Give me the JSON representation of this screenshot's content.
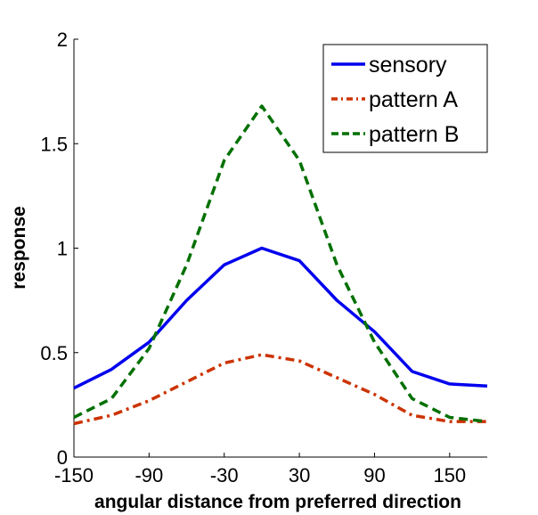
{
  "chart_data": {
    "type": "line",
    "xlabel": "angular distance from preferred direction",
    "ylabel": "response",
    "xlim": [
      -150,
      180
    ],
    "ylim": [
      0,
      2
    ],
    "xticks": [
      -150,
      -90,
      -30,
      30,
      90,
      150
    ],
    "xtick_labels": [
      "-150",
      "-90",
      "-30",
      "30",
      "90",
      "150"
    ],
    "yticks": [
      0,
      0.5,
      1,
      1.5,
      2
    ],
    "ytick_labels": [
      "0",
      "0.5",
      "1",
      "1.5",
      "2"
    ],
    "grid": false,
    "legend_position": "top-right",
    "x": [
      -150,
      -120,
      -90,
      -60,
      -30,
      0,
      30,
      60,
      90,
      120,
      150,
      180
    ],
    "series": [
      {
        "name": "sensory",
        "color": "#0000ee",
        "style": "solid",
        "values": [
          0.33,
          0.42,
          0.55,
          0.75,
          0.92,
          1.0,
          0.94,
          0.75,
          0.6,
          0.41,
          0.35,
          0.34
        ]
      },
      {
        "name": "pattern A",
        "color": "#cc3300",
        "style": "dashdot",
        "values": [
          0.16,
          0.2,
          0.27,
          0.36,
          0.45,
          0.49,
          0.46,
          0.38,
          0.3,
          0.2,
          0.17,
          0.17
        ]
      },
      {
        "name": "pattern B",
        "color": "#007000",
        "style": "dashed",
        "values": [
          0.19,
          0.28,
          0.52,
          0.92,
          1.42,
          1.68,
          1.42,
          0.92,
          0.55,
          0.28,
          0.19,
          0.17
        ]
      }
    ]
  }
}
